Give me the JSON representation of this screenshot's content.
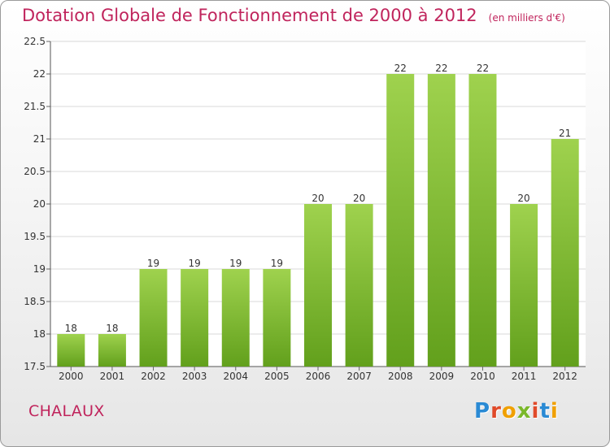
{
  "header": {
    "title": "Dotation Globale de Fonctionnement de 2000 à 2012",
    "unit": "(en milliers d'€)"
  },
  "footer": {
    "city": "CHALAUX",
    "logo": "Proxiti",
    "logo_colors": [
      "#2a8ad4",
      "#e04a2a",
      "#f0a000",
      "#7ab82a",
      "#e04a2a",
      "#2a8ad4",
      "#f0a000"
    ]
  },
  "colors": {
    "bar_top": "#9fd24e",
    "bar_bottom": "#62a01c",
    "title": "#c0245c"
  },
  "chart_data": {
    "type": "bar",
    "categories": [
      "2000",
      "2001",
      "2002",
      "2003",
      "2004",
      "2005",
      "2006",
      "2007",
      "2008",
      "2009",
      "2010",
      "2011",
      "2012"
    ],
    "values": [
      18,
      18,
      19,
      19,
      19,
      19,
      20,
      20,
      22,
      22,
      22,
      20,
      21
    ],
    "data_labels": [
      "18",
      "18",
      "19",
      "19",
      "19",
      "19",
      "20",
      "20",
      "22",
      "22",
      "22",
      "20",
      "21"
    ],
    "y_ticks": [
      "17.5",
      "18",
      "18.5",
      "19",
      "19.5",
      "20",
      "20.5",
      "21",
      "21.5",
      "22",
      "22.5"
    ],
    "ylim": [
      17.5,
      22.5
    ],
    "grid": true,
    "legend": "none"
  }
}
